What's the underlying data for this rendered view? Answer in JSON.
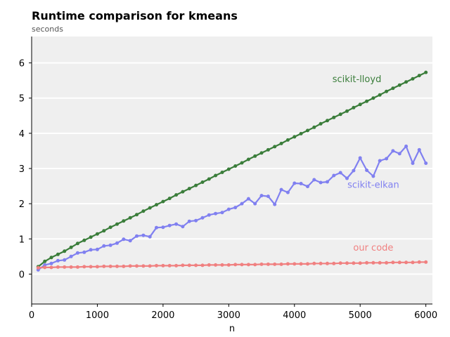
{
  "chart_data": {
    "type": "line",
    "title": "Runtime comparison for kmeans",
    "subtitle": "seconds",
    "xlabel": "n",
    "ylabel": "",
    "xlim": [
      0,
      6100
    ],
    "ylim": [
      -0.85,
      6.75
    ],
    "xticks": [
      0,
      1000,
      2000,
      3000,
      4000,
      5000,
      6000
    ],
    "yticks": [
      0,
      1,
      2,
      3,
      4,
      5,
      6
    ],
    "grid": "horizontal",
    "x": [
      100,
      200,
      300,
      400,
      500,
      600,
      700,
      800,
      900,
      1000,
      1100,
      1200,
      1300,
      1400,
      1500,
      1600,
      1700,
      1800,
      1900,
      2000,
      2100,
      2200,
      2300,
      2400,
      2500,
      2600,
      2700,
      2800,
      2900,
      3000,
      3100,
      3200,
      3300,
      3400,
      3500,
      3600,
      3700,
      3800,
      3900,
      4000,
      4100,
      4200,
      4300,
      4400,
      4500,
      4600,
      4700,
      4800,
      4900,
      5000,
      5100,
      5200,
      5300,
      5400,
      5500,
      5600,
      5700,
      5800,
      5900,
      6000
    ],
    "series": [
      {
        "name": "scikit-lloyd",
        "color": "#3a7d3a",
        "label_pos": [
          4950,
          5.45
        ],
        "values": [
          0.21,
          0.36,
          0.47,
          0.56,
          0.65,
          0.76,
          0.87,
          0.96,
          1.05,
          1.14,
          1.23,
          1.33,
          1.42,
          1.51,
          1.6,
          1.69,
          1.79,
          1.88,
          1.97,
          2.06,
          2.15,
          2.25,
          2.34,
          2.43,
          2.52,
          2.61,
          2.7,
          2.8,
          2.89,
          2.98,
          3.07,
          3.16,
          3.26,
          3.35,
          3.44,
          3.53,
          3.62,
          3.71,
          3.81,
          3.9,
          3.99,
          4.08,
          4.17,
          4.27,
          4.36,
          4.45,
          4.54,
          4.63,
          4.73,
          4.82,
          4.91,
          5.0,
          5.09,
          5.19,
          5.28,
          5.37,
          5.46,
          5.55,
          5.64,
          5.73
        ]
      },
      {
        "name": "scikit-elkan",
        "color": "#8080f0",
        "label_pos": [
          5200,
          2.45
        ],
        "values": [
          0.12,
          0.26,
          0.3,
          0.38,
          0.4,
          0.5,
          0.6,
          0.62,
          0.69,
          0.7,
          0.8,
          0.82,
          0.88,
          0.99,
          0.95,
          1.08,
          1.1,
          1.06,
          1.32,
          1.33,
          1.38,
          1.42,
          1.35,
          1.5,
          1.52,
          1.6,
          1.68,
          1.72,
          1.75,
          1.84,
          1.89,
          2.0,
          2.14,
          2.0,
          2.23,
          2.21,
          1.98,
          2.4,
          2.32,
          2.58,
          2.57,
          2.49,
          2.68,
          2.6,
          2.62,
          2.8,
          2.88,
          2.72,
          2.94,
          3.3,
          2.95,
          2.78,
          3.22,
          3.28,
          3.5,
          3.42,
          3.63,
          3.15,
          3.53,
          3.15
        ]
      },
      {
        "name": "our code",
        "color": "#f08080",
        "label_pos": [
          5200,
          0.67
        ],
        "values": [
          0.18,
          0.19,
          0.19,
          0.2,
          0.2,
          0.2,
          0.2,
          0.21,
          0.21,
          0.21,
          0.22,
          0.22,
          0.22,
          0.22,
          0.23,
          0.23,
          0.23,
          0.23,
          0.24,
          0.24,
          0.24,
          0.24,
          0.25,
          0.25,
          0.25,
          0.25,
          0.26,
          0.26,
          0.26,
          0.26,
          0.27,
          0.27,
          0.27,
          0.27,
          0.28,
          0.28,
          0.28,
          0.28,
          0.29,
          0.29,
          0.29,
          0.29,
          0.3,
          0.3,
          0.3,
          0.3,
          0.31,
          0.31,
          0.31,
          0.31,
          0.32,
          0.32,
          0.32,
          0.32,
          0.33,
          0.33,
          0.33,
          0.33,
          0.34,
          0.34
        ]
      }
    ]
  }
}
